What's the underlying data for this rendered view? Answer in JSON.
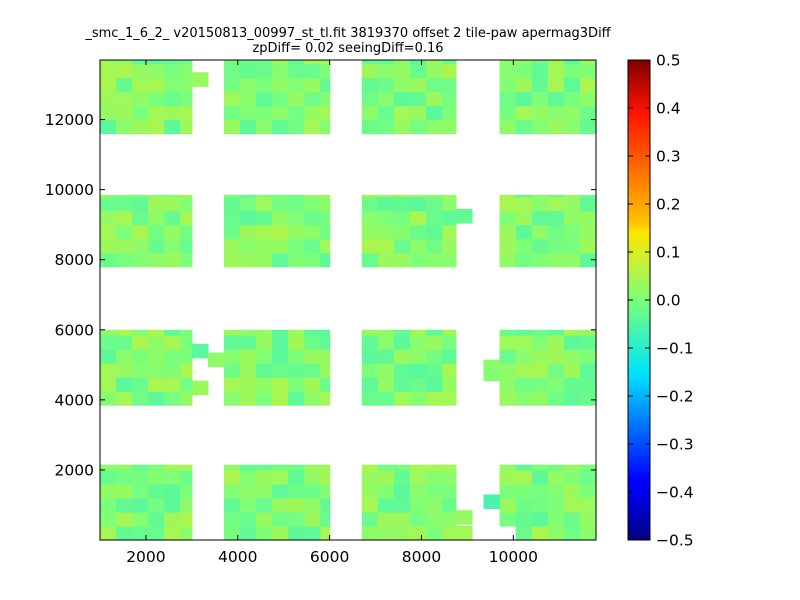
{
  "chart_data": {
    "type": "heatmap",
    "title": "_smc_1_6_2_ v20150813_00997_st_tl.fit 3819370 offset 2 tile-paw apermag3Diff",
    "subtitle": "zpDiff= 0.02 seeingDiff=0.16",
    "xlabel": "",
    "ylabel": "",
    "xlim": [
      1000,
      11800
    ],
    "ylim": [
      0,
      13700
    ],
    "x_ticks": [
      "2000",
      "4000",
      "6000",
      "8000",
      "10000"
    ],
    "y_ticks": [
      "2000",
      "4000",
      "6000",
      "8000",
      "10000",
      "12000"
    ],
    "grid": false,
    "colormap": "jet",
    "colorbar": {
      "range": [
        -0.5,
        0.5
      ],
      "ticks": [
        "0.5",
        "0.4",
        "0.3",
        "0.2",
        "0.1",
        "0.0",
        "−0.1",
        "−0.2",
        "−0.3",
        "−0.4",
        "−0.5"
      ]
    },
    "cell_size": [
      350,
      400
    ],
    "columns": [
      {
        "x": [
          1000,
          3000
        ]
      },
      {
        "x": [
          3700,
          6000
        ]
      },
      {
        "x": [
          6700,
          8750
        ]
      },
      {
        "x": [
          9700,
          11800
        ]
      }
    ],
    "rows": [
      {
        "y": [
          11600,
          13700
        ]
      },
      {
        "y": [
          7800,
          9850
        ]
      },
      {
        "y": [
          3850,
          6000
        ]
      },
      {
        "y": [
          0,
          2150
        ]
      }
    ],
    "extra_cells": [
      {
        "x": 3000,
        "y": 12950,
        "value": 0.03
      },
      {
        "x": 8750,
        "y": 9050,
        "value": -0.03
      },
      {
        "x": 3000,
        "y": 5200,
        "value": -0.04
      },
      {
        "x": 3000,
        "y": 4150,
        "value": 0.03
      },
      {
        "x": 9350,
        "y": 4750,
        "value": 0.02
      },
      {
        "x": 8750,
        "y": 0,
        "value": 0.04
      },
      {
        "x": 8750,
        "y": 450,
        "value": 0.03
      },
      {
        "x": 9350,
        "y": 900,
        "value": -0.06
      },
      {
        "x": 3350,
        "y": 4950,
        "value": 0.02
      },
      {
        "x": 9350,
        "y": 4550,
        "value": 0.01
      }
    ],
    "missing_cells": [
      {
        "x": 1000,
        "y": 13300
      },
      {
        "x": 1000,
        "y": 12950
      },
      {
        "x": 1700,
        "y": 13300
      },
      {
        "x": 1700,
        "y": 12950
      },
      {
        "x": 1700,
        "y": 12550
      },
      {
        "x": 3700,
        "y": 8150
      },
      {
        "x": 3700,
        "y": 8550
      },
      {
        "x": 3700,
        "y": 8950
      },
      {
        "x": 3700,
        "y": 9350
      },
      {
        "x": 1350,
        "y": 8150
      },
      {
        "x": 1000,
        "y": 5200
      },
      {
        "x": 3700,
        "y": 5600
      },
      {
        "x": 9700,
        "y": 0
      },
      {
        "x": 9700,
        "y": 450
      },
      {
        "x": 9700,
        "y": 900
      },
      {
        "x": 9700,
        "y": 1350
      },
      {
        "x": 9700,
        "y": 1750
      }
    ],
    "highlight_cells": [
      {
        "x": 2000,
        "y": 450,
        "value": 0.11
      },
      {
        "x": 10550,
        "y": 12150,
        "value": 0.09
      },
      {
        "x": 2000,
        "y": 900,
        "value": 0.07
      },
      {
        "x": 1350,
        "y": 900,
        "value": 0.06
      },
      {
        "x": 8400,
        "y": 13300,
        "value": -0.05
      },
      {
        "x": 4400,
        "y": 1750,
        "value": -0.06
      },
      {
        "x": 5750,
        "y": 7800,
        "value": -0.07
      },
      {
        "x": 7000,
        "y": 9350,
        "value": -0.05
      }
    ]
  }
}
